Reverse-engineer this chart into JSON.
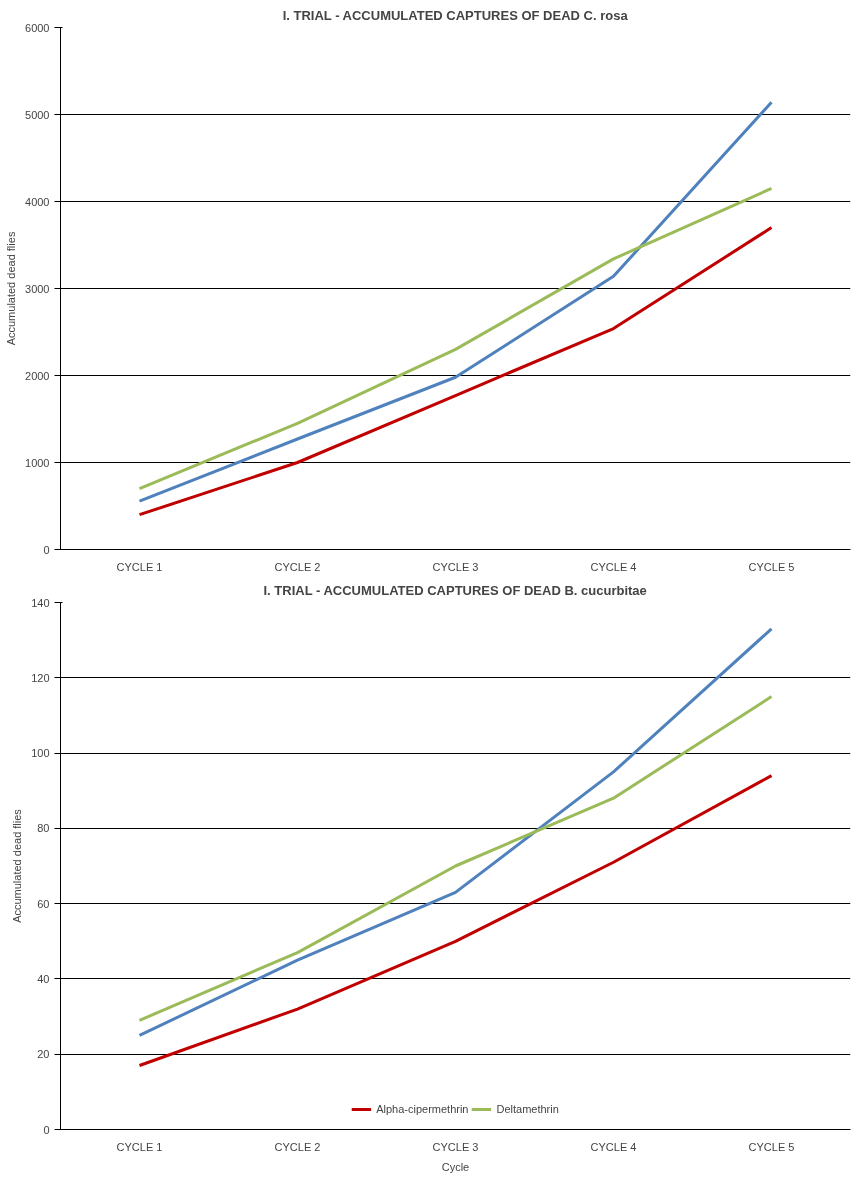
{
  "chart_data": [
    {
      "type": "line",
      "title": "I. TRIAL - ACCUMULATED CAPTURES OF DEAD C. rosa",
      "ylabel": "Accumulated dead flies",
      "categories": [
        "CYCLE 1",
        "CYCLE 2",
        "CYCLE 3",
        "CYCLE 4",
        "CYCLE 5"
      ],
      "ylim": [
        0,
        6000
      ],
      "yticks": [
        0,
        1000,
        2000,
        3000,
        4000,
        5000,
        6000
      ],
      "grid": "y",
      "legend": false,
      "series": [
        {
          "color": "#4f81bd",
          "values": [
            555,
            1270,
            1980,
            3140,
            5140
          ]
        },
        {
          "color": "#c00000",
          "values": [
            400,
            1000,
            1770,
            2540,
            3700
          ]
        },
        {
          "color": "#9bbb59",
          "values": [
            700,
            1450,
            2300,
            3340,
            4150
          ]
        }
      ]
    },
    {
      "type": "line",
      "title": "I. TRIAL - ACCUMULATED CAPTURES OF DEAD B. cucurbitae",
      "xlabel": "Cycle",
      "ylabel": "Accumulated dead flies",
      "categories": [
        "CYCLE 1",
        "CYCLE 2",
        "CYCLE 3",
        "CYCLE 4",
        "CYCLE 5"
      ],
      "ylim": [
        0,
        140
      ],
      "yticks": [
        0,
        20,
        40,
        60,
        80,
        100,
        120,
        140
      ],
      "grid": "y",
      "legend": "bottom",
      "series": [
        {
          "color": "#4f81bd",
          "values": [
            25,
            45,
            63,
            95,
            133
          ]
        },
        {
          "name": "Alpha-cipermethrin",
          "color": "#c00000",
          "values": [
            17,
            32,
            50,
            71,
            94
          ]
        },
        {
          "name": "Deltamethrin",
          "color": "#9bbb59",
          "values": [
            29,
            47,
            70,
            88,
            115
          ]
        }
      ]
    }
  ]
}
